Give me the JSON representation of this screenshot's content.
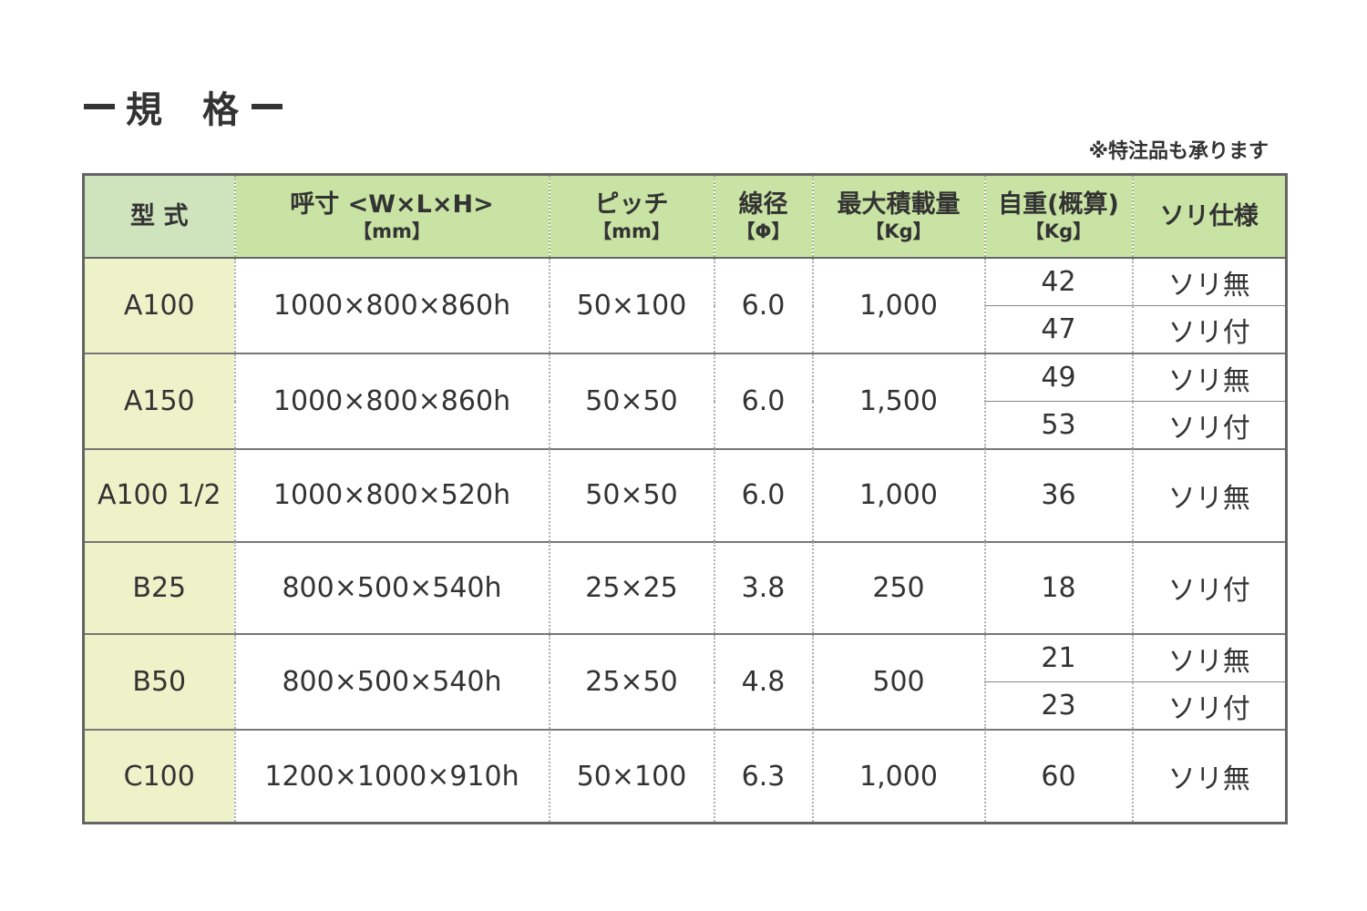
{
  "title": "規　格",
  "note": "※特注品も承ります",
  "headers": {
    "model": "型 式",
    "size": "呼寸 <W×L×H>",
    "size_unit": "【mm】",
    "pitch": "ピッチ",
    "pitch_unit": "【mm】",
    "wire": "線径",
    "wire_unit": "【Φ】",
    "load": "最大積載量",
    "load_unit": "【Kg】",
    "weight": "自重(概算)",
    "weight_unit": "【Kg】",
    "sled": "ソリ仕様"
  },
  "rows": [
    {
      "model": "A100",
      "size": "1000×800×860h",
      "pitch": "50×100",
      "wire": "6.0",
      "load": "1,000",
      "variants": [
        {
          "weight": "42",
          "sled": "ソリ無"
        },
        {
          "weight": "47",
          "sled": "ソリ付"
        }
      ]
    },
    {
      "model": "A150",
      "size": "1000×800×860h",
      "pitch": "50×50",
      "wire": "6.0",
      "load": "1,500",
      "variants": [
        {
          "weight": "49",
          "sled": "ソリ無"
        },
        {
          "weight": "53",
          "sled": "ソリ付"
        }
      ]
    },
    {
      "model": "A100 1/2",
      "size": "1000×800×520h",
      "pitch": "50×50",
      "wire": "6.0",
      "load": "1,000",
      "variants": [
        {
          "weight": "36",
          "sled": "ソリ無"
        }
      ]
    },
    {
      "model": "B25",
      "size": "800×500×540h",
      "pitch": "25×25",
      "wire": "3.8",
      "load": "250",
      "variants": [
        {
          "weight": "18",
          "sled": "ソリ付"
        }
      ]
    },
    {
      "model": "B50",
      "size": "800×500×540h",
      "pitch": "25×50",
      "wire": "4.8",
      "load": "500",
      "variants": [
        {
          "weight": "21",
          "sled": "ソリ無"
        },
        {
          "weight": "23",
          "sled": "ソリ付"
        }
      ]
    },
    {
      "model": "C100",
      "size": "1200×1000×910h",
      "pitch": "50×100",
      "wire": "6.3",
      "load": "1,000",
      "variants": [
        {
          "weight": "60",
          "sled": "ソリ無"
        }
      ]
    }
  ]
}
